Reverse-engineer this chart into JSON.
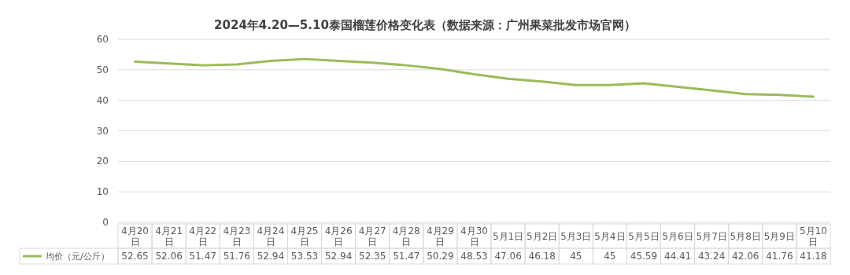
{
  "chart_data": {
    "type": "line",
    "title": "2024年4.20—5.10泰国榴莲价格变化表（数据来源：广州果菜批发市场官网）",
    "categories": [
      "4月20日",
      "4月21日",
      "4月22日",
      "4月23日",
      "4月24日",
      "4月25日",
      "4月26日",
      "4月27日",
      "4月28日",
      "4月29日",
      "4月30日",
      "5月1日",
      "5月2日",
      "5月3日",
      "5月4日",
      "5月5日",
      "5月6日",
      "5月7日",
      "5月8日",
      "5月9日",
      "5月10日"
    ],
    "series": [
      {
        "name": "均价（元/公斤）",
        "color": "#9bbb59",
        "values": [
          52.65,
          52.06,
          51.47,
          51.76,
          52.94,
          53.53,
          52.94,
          52.35,
          51.47,
          50.29,
          48.53,
          47.06,
          46.18,
          45,
          45,
          45.59,
          44.41,
          43.24,
          42.06,
          41.76,
          41.18
        ]
      }
    ],
    "ylim": [
      0,
      60
    ],
    "yticks": [
      0,
      10,
      20,
      30,
      40,
      50,
      60
    ],
    "grid": "y",
    "data_labels": true,
    "legend": "bottom left",
    "marker": "none",
    "line_style": "solid"
  }
}
